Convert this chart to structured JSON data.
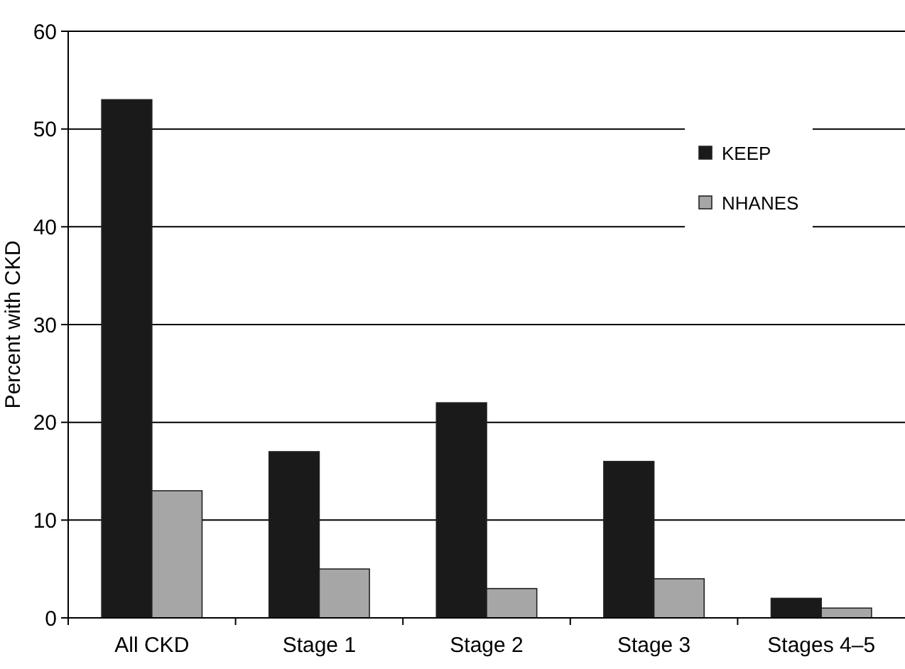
{
  "chart_data": {
    "type": "bar",
    "ylabel": "Percent with CKD",
    "categories": [
      "All CKD",
      "Stage 1",
      "Stage 2",
      "Stage 3",
      "Stages 4–5"
    ],
    "series": [
      {
        "name": "KEEP",
        "color": "#1a1a1a",
        "values": [
          53,
          17,
          22,
          16,
          2
        ]
      },
      {
        "name": "NHANES",
        "color": "#a6a6a6",
        "values": [
          13,
          5,
          3,
          4,
          1
        ]
      }
    ],
    "ylim": [
      0,
      60
    ],
    "yticks": [
      0,
      10,
      20,
      30,
      40,
      50,
      60
    ],
    "grid": "y",
    "legend": "top right"
  }
}
